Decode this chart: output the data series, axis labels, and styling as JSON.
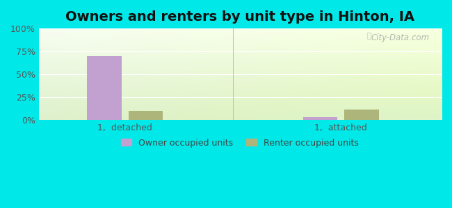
{
  "title": "Owners and renters by unit type in Hinton, IA",
  "categories": [
    "1,  detached",
    "1,  attached"
  ],
  "owner_values": [
    70.0,
    3.0
  ],
  "renter_values": [
    10.0,
    12.0
  ],
  "owner_color": "#c2a0d0",
  "renter_color": "#adb57a",
  "bg_color": "#00e8e8",
  "yticks": [
    0,
    25,
    50,
    75,
    100
  ],
  "ylim": [
    0,
    100
  ],
  "bar_width": 0.12,
  "title_fontsize": 14,
  "legend_labels": [
    "Owner occupied units",
    "Renter occupied units"
  ],
  "watermark": "City-Data.com"
}
